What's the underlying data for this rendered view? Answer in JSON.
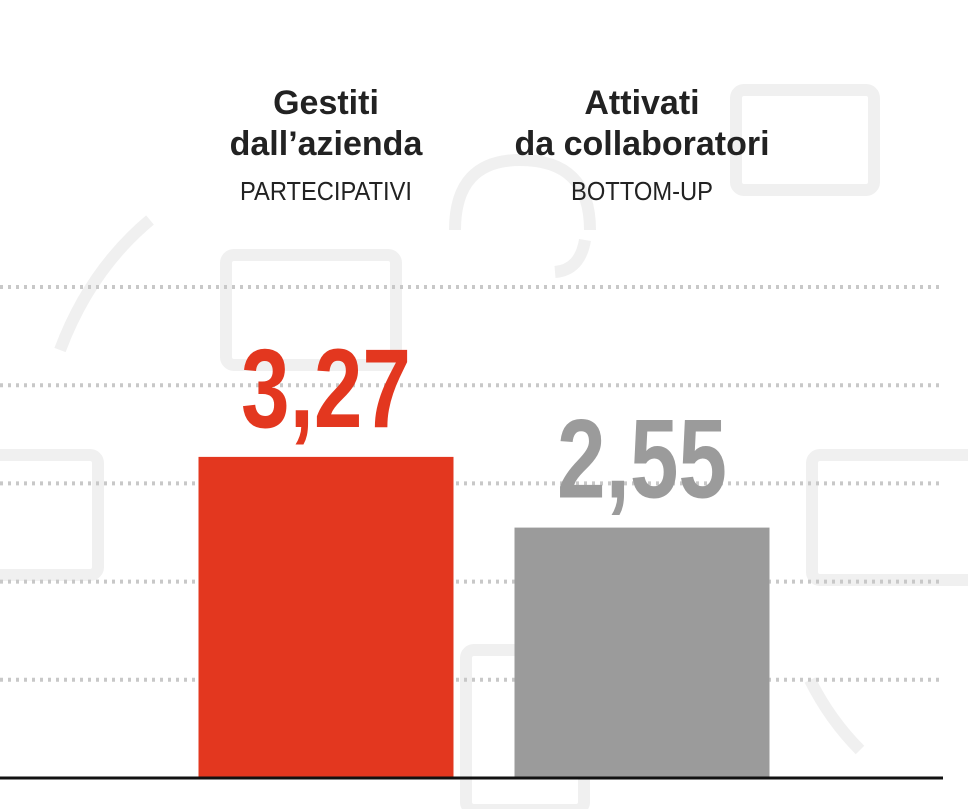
{
  "chart_data": {
    "type": "bar",
    "categories": [
      [
        "Gestiti",
        "dall’azienda"
      ],
      [
        "Attivati",
        "da collaboratori"
      ]
    ],
    "category_subtitles": [
      "PARTECIPATIVI",
      "BOTTOM-UP"
    ],
    "values": [
      3.27,
      2.55
    ],
    "value_labels": [
      "3,27",
      "2,55"
    ],
    "colors": [
      "#e3371f",
      "#9b9b9b"
    ],
    "ylim": [
      0,
      5
    ],
    "yticks": [
      1,
      2,
      3,
      4,
      5
    ],
    "grid": true
  }
}
